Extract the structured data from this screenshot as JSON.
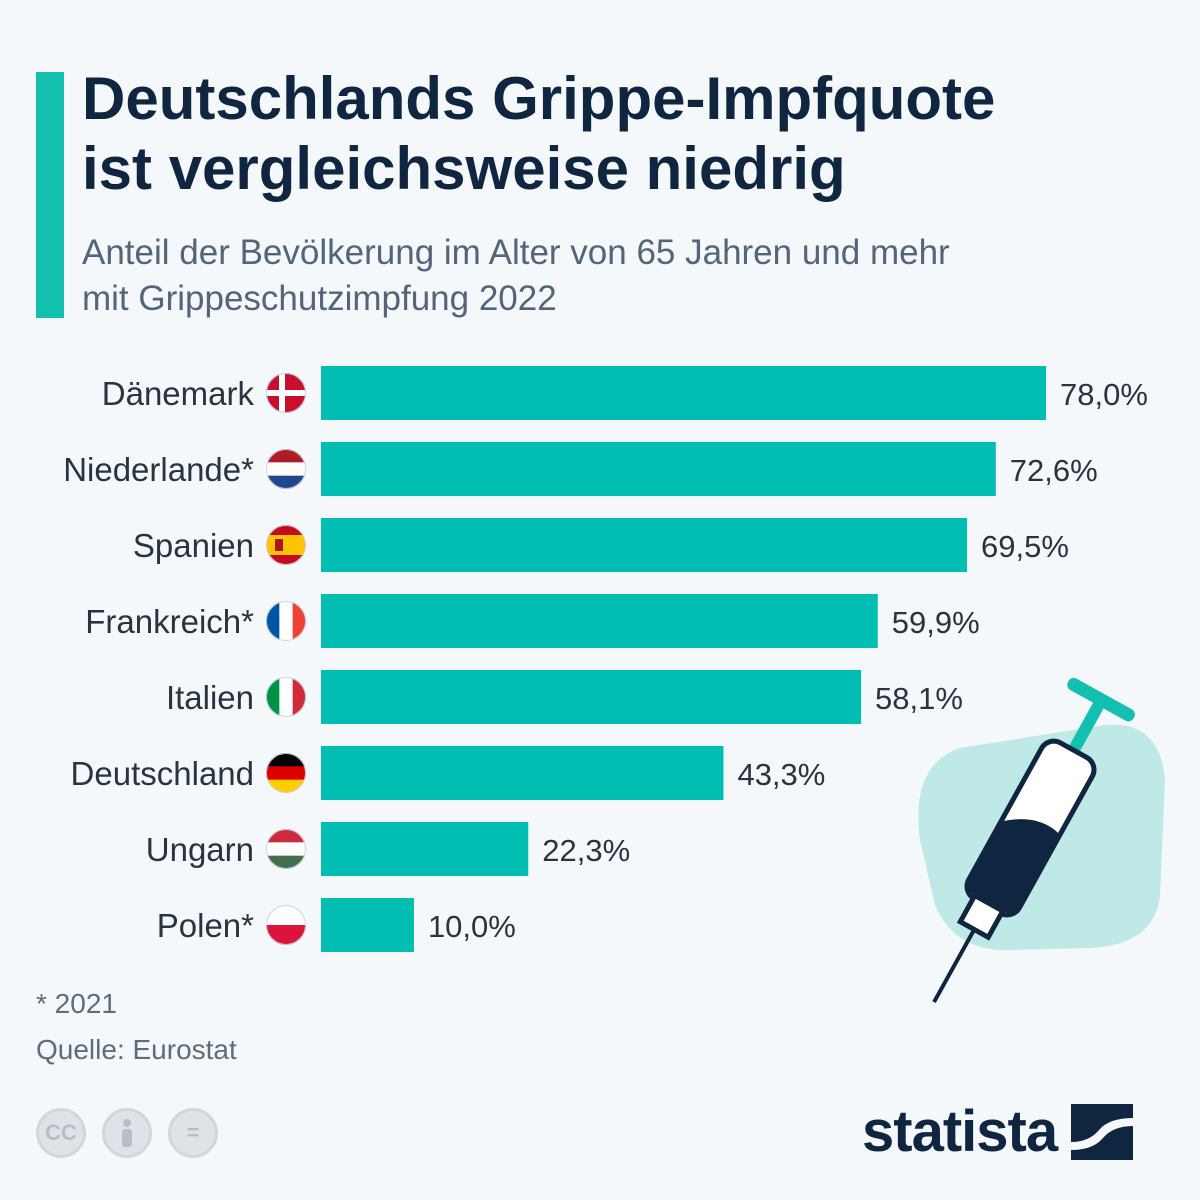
{
  "header": {
    "title_line1": "Deutschlands Grippe-Impfquote",
    "title_line2": "ist vergleichsweise niedrig",
    "subtitle_line1": "Anteil der Bevölkerung im Alter von 65 Jahren und mehr",
    "subtitle_line2": "mit Grippeschutzimpfung 2022"
  },
  "colors": {
    "accent": "#13c0b0",
    "bar": "#00bfb2",
    "title": "#102540",
    "text": "#2a3340",
    "illustration_bg": "#bfe9e6"
  },
  "chart_data": {
    "type": "bar",
    "orientation": "horizontal",
    "title": "Deutschlands Grippe-Impfquote ist vergleichsweise niedrig",
    "subtitle": "Anteil der Bevölkerung im Alter von 65 Jahren und mehr mit Grippeschutzimpfung 2022",
    "unit": "%",
    "xlim": [
      0,
      78
    ],
    "categories": [
      "Dänemark",
      "Niederlande*",
      "Spanien",
      "Frankreich*",
      "Italien",
      "Deutschland",
      "Ungarn",
      "Polen*"
    ],
    "flags": [
      "denmark-flag-icon",
      "netherlands-flag-icon",
      "spain-flag-icon",
      "france-flag-icon",
      "italy-flag-icon",
      "germany-flag-icon",
      "hungary-flag-icon",
      "poland-flag-icon"
    ],
    "values": [
      78.0,
      72.6,
      69.5,
      59.9,
      58.1,
      43.3,
      22.3,
      10.0
    ],
    "value_labels": [
      "78,0%",
      "72,6%",
      "69,5%",
      "59,9%",
      "58,1%",
      "43,3%",
      "22,3%",
      "10,0%"
    ]
  },
  "footer": {
    "footnote": "* 2021",
    "source": "Quelle: Eurostat",
    "brand": "statista",
    "license_icons": [
      "cc-icon",
      "attribution-icon",
      "no-derivatives-icon"
    ],
    "license_cc": "CC",
    "license_nd": "="
  }
}
